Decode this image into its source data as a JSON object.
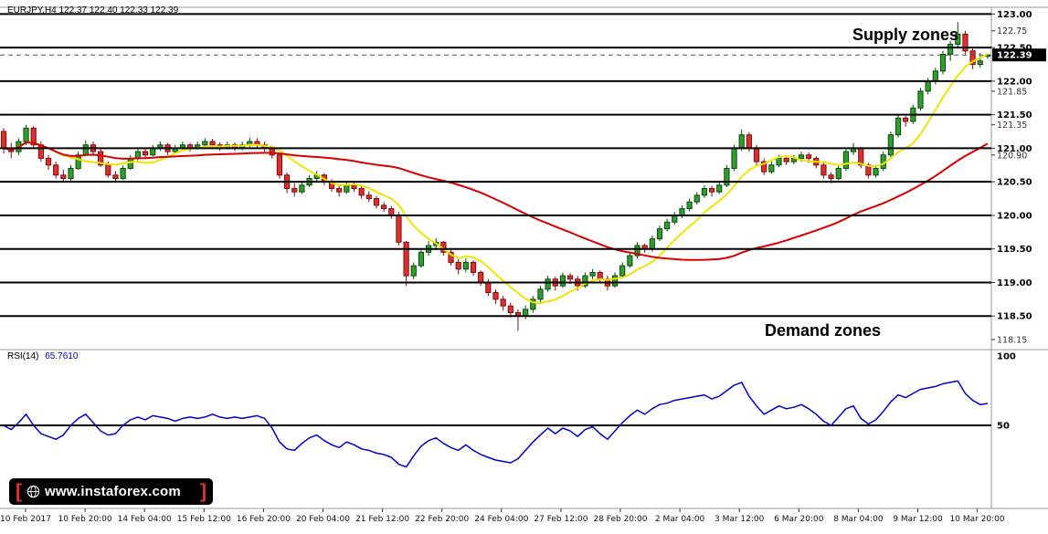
{
  "header": {
    "title": "EURJPY,H4 122.37 122.40 122.33 122.39"
  },
  "annotations": {
    "supply_zones": "Supply zones",
    "demand_zones": "Demand zones"
  },
  "rsi_label": {
    "name": "RSI(14)",
    "value": "65.7610"
  },
  "logo": {
    "bracket_left": "[",
    "text": "www.instaforex.com",
    "bracket_right": "]"
  },
  "time_axis": {
    "labels": [
      "10 Feb 2017",
      "10 Feb 20:00",
      "14 Feb 04:00",
      "15 Feb 12:00",
      "16 Feb 20:00",
      "20 Feb 04:00",
      "21 Feb 12:00",
      "22 Feb 20:00",
      "24 Feb 04:00",
      "27 Feb 12:00",
      "28 Feb 20:00",
      "2 Mar 04:00",
      "3 Mar 12:00",
      "6 Mar 20:00",
      "8 Mar 04:00",
      "9 Mar 12:00",
      "10 Mar 20:00"
    ]
  },
  "chart_data": {
    "type": "candlestick",
    "title": "EURJPY,H4",
    "symbol": "EURJPY",
    "timeframe": "H4",
    "ohlc_display": {
      "open": "122.37",
      "high": "122.40",
      "low": "122.33",
      "close": "122.39"
    },
    "ylim": [
      118.0,
      123.1
    ],
    "grid": false,
    "colors": {
      "bull": "#2f9e2f",
      "bull_border": "#0c4a0c",
      "bear": "#de2f2f",
      "bear_border": "#7d0f0f",
      "level": "#000000"
    },
    "horizontal_levels": [
      123.0,
      122.5,
      122.0,
      121.5,
      121.0,
      120.5,
      120.0,
      119.5,
      119.0,
      118.5
    ],
    "axis_labels": [
      {
        "text": "123.00",
        "price": 123.0,
        "bold": true
      },
      {
        "text": "122.75",
        "price": 122.75,
        "bold": false
      },
      {
        "text": "122.50",
        "price": 122.5,
        "bold": true
      },
      {
        "text": "122.00",
        "price": 122.0,
        "bold": true
      },
      {
        "text": "121.85",
        "price": 121.85,
        "bold": false
      },
      {
        "text": "121.50",
        "price": 121.5,
        "bold": true
      },
      {
        "text": "121.35",
        "price": 121.35,
        "bold": false
      },
      {
        "text": "121.00",
        "price": 121.0,
        "bold": true
      },
      {
        "text": "120.90",
        "price": 120.9,
        "bold": false
      },
      {
        "text": "120.50",
        "price": 120.5,
        "bold": true
      },
      {
        "text": "120.00",
        "price": 120.0,
        "bold": true
      },
      {
        "text": "119.50",
        "price": 119.5,
        "bold": true
      },
      {
        "text": "119.00",
        "price": 119.0,
        "bold": true
      },
      {
        "text": "118.50",
        "price": 118.5,
        "bold": true
      },
      {
        "text": "118.15",
        "price": 118.15,
        "bold": false
      }
    ],
    "current_price": 122.39,
    "ma_fast": {
      "period": 8,
      "color": "#f2e400"
    },
    "ma_slow": {
      "period": 45,
      "color": "#d90000"
    },
    "candles": [
      [
        121.25,
        121.3,
        120.92,
        121.0
      ],
      [
        121.0,
        121.08,
        120.85,
        120.95
      ],
      [
        120.95,
        121.15,
        120.9,
        121.1
      ],
      [
        121.1,
        121.35,
        121.05,
        121.3
      ],
      [
        121.3,
        121.33,
        121.0,
        121.05
      ],
      [
        121.05,
        121.1,
        120.8,
        120.85
      ],
      [
        120.85,
        120.9,
        120.68,
        120.75
      ],
      [
        120.75,
        120.8,
        120.55,
        120.6
      ],
      [
        120.6,
        120.68,
        120.5,
        120.55
      ],
      [
        120.55,
        120.75,
        120.52,
        120.7
      ],
      [
        120.7,
        120.95,
        120.68,
        120.9
      ],
      [
        120.9,
        121.12,
        120.88,
        121.05
      ],
      [
        121.05,
        121.1,
        120.9,
        120.95
      ],
      [
        120.95,
        121.0,
        120.72,
        120.75
      ],
      [
        120.75,
        120.8,
        120.56,
        120.6
      ],
      [
        120.6,
        120.66,
        120.5,
        120.55
      ],
      [
        120.55,
        120.75,
        120.53,
        120.7
      ],
      [
        120.7,
        120.9,
        120.68,
        120.85
      ],
      [
        120.85,
        121.0,
        120.82,
        120.95
      ],
      [
        120.95,
        121.0,
        120.84,
        120.9
      ],
      [
        120.9,
        121.05,
        120.88,
        121.0
      ],
      [
        121.0,
        121.1,
        120.96,
        121.05
      ],
      [
        121.05,
        121.08,
        120.9,
        120.95
      ],
      [
        120.95,
        121.05,
        120.92,
        121.0
      ],
      [
        121.0,
        121.1,
        120.97,
        121.05
      ],
      [
        121.05,
        121.08,
        120.95,
        121.0
      ],
      [
        121.0,
        121.1,
        120.98,
        121.05
      ],
      [
        121.05,
        121.15,
        121.02,
        121.1
      ],
      [
        121.1,
        121.14,
        121.0,
        121.05
      ],
      [
        121.05,
        121.09,
        120.96,
        121.0
      ],
      [
        121.0,
        121.1,
        120.98,
        121.05
      ],
      [
        121.05,
        121.09,
        120.96,
        121.0
      ],
      [
        121.0,
        121.1,
        120.97,
        121.05
      ],
      [
        121.05,
        121.16,
        121.02,
        121.1
      ],
      [
        121.1,
        121.15,
        121.0,
        121.05
      ],
      [
        121.05,
        121.1,
        120.95,
        121.0
      ],
      [
        121.0,
        121.04,
        120.85,
        120.9
      ],
      [
        120.9,
        120.93,
        120.55,
        120.6
      ],
      [
        120.6,
        120.64,
        120.33,
        120.4
      ],
      [
        120.4,
        120.48,
        120.28,
        120.35
      ],
      [
        120.35,
        120.5,
        120.32,
        120.45
      ],
      [
        120.45,
        120.6,
        120.42,
        120.55
      ],
      [
        120.55,
        120.66,
        120.5,
        120.6
      ],
      [
        120.6,
        120.63,
        120.45,
        120.5
      ],
      [
        120.5,
        120.54,
        120.35,
        120.4
      ],
      [
        120.4,
        120.45,
        120.28,
        120.35
      ],
      [
        120.35,
        120.5,
        120.32,
        120.45
      ],
      [
        120.45,
        120.49,
        120.35,
        120.4
      ],
      [
        120.4,
        120.44,
        120.25,
        120.3
      ],
      [
        120.3,
        120.36,
        120.2,
        120.25
      ],
      [
        120.25,
        120.29,
        120.1,
        120.15
      ],
      [
        120.15,
        120.2,
        120.05,
        120.1
      ],
      [
        120.1,
        120.14,
        119.95,
        120.0
      ],
      [
        120.0,
        120.05,
        119.55,
        119.6
      ],
      [
        119.6,
        119.62,
        118.95,
        119.1
      ],
      [
        119.1,
        119.3,
        119.05,
        119.25
      ],
      [
        119.25,
        119.5,
        119.22,
        119.45
      ],
      [
        119.45,
        119.62,
        119.4,
        119.55
      ],
      [
        119.55,
        119.66,
        119.48,
        119.6
      ],
      [
        119.6,
        119.62,
        119.4,
        119.45
      ],
      [
        119.45,
        119.5,
        119.25,
        119.3
      ],
      [
        119.3,
        119.35,
        119.12,
        119.2
      ],
      [
        119.2,
        119.36,
        119.15,
        119.3
      ],
      [
        119.3,
        119.33,
        119.1,
        119.15
      ],
      [
        119.15,
        119.18,
        118.95,
        119.0
      ],
      [
        119.0,
        119.05,
        118.8,
        118.85
      ],
      [
        118.85,
        118.9,
        118.68,
        118.75
      ],
      [
        118.75,
        118.8,
        118.58,
        118.65
      ],
      [
        118.65,
        118.7,
        118.48,
        118.55
      ],
      [
        118.55,
        118.6,
        118.28,
        118.5
      ],
      [
        118.5,
        118.66,
        118.45,
        118.6
      ],
      [
        118.6,
        118.8,
        118.55,
        118.75
      ],
      [
        118.75,
        118.95,
        118.7,
        118.9
      ],
      [
        118.9,
        119.1,
        118.86,
        119.05
      ],
      [
        119.05,
        119.09,
        118.88,
        118.95
      ],
      [
        118.95,
        119.15,
        118.92,
        119.1
      ],
      [
        119.1,
        119.14,
        118.98,
        119.05
      ],
      [
        119.05,
        119.1,
        118.88,
        118.95
      ],
      [
        118.95,
        119.15,
        118.92,
        119.1
      ],
      [
        119.1,
        119.2,
        119.05,
        119.15
      ],
      [
        119.15,
        119.18,
        119.0,
        119.05
      ],
      [
        119.05,
        119.1,
        118.88,
        118.95
      ],
      [
        118.95,
        119.15,
        118.92,
        119.1
      ],
      [
        119.1,
        119.3,
        119.06,
        119.25
      ],
      [
        119.25,
        119.45,
        119.22,
        119.4
      ],
      [
        119.4,
        119.6,
        119.36,
        119.55
      ],
      [
        119.55,
        119.58,
        119.44,
        119.5
      ],
      [
        119.5,
        119.7,
        119.46,
        119.65
      ],
      [
        119.65,
        119.85,
        119.62,
        119.8
      ],
      [
        119.8,
        119.95,
        119.76,
        119.9
      ],
      [
        119.9,
        120.05,
        119.86,
        120.0
      ],
      [
        120.0,
        120.15,
        119.96,
        120.1
      ],
      [
        120.1,
        120.25,
        120.06,
        120.2
      ],
      [
        120.2,
        120.35,
        120.16,
        120.3
      ],
      [
        120.3,
        120.45,
        120.26,
        120.4
      ],
      [
        120.4,
        120.44,
        120.28,
        120.35
      ],
      [
        120.35,
        120.5,
        120.32,
        120.45
      ],
      [
        120.45,
        120.75,
        120.42,
        120.7
      ],
      [
        120.7,
        121.05,
        120.66,
        121.0
      ],
      [
        121.0,
        121.28,
        120.96,
        121.2
      ],
      [
        121.2,
        121.24,
        120.95,
        121.0
      ],
      [
        121.0,
        121.05,
        120.75,
        120.8
      ],
      [
        120.8,
        120.85,
        120.6,
        120.65
      ],
      [
        120.65,
        120.8,
        120.62,
        120.75
      ],
      [
        120.75,
        120.9,
        120.72,
        120.85
      ],
      [
        120.85,
        120.89,
        120.75,
        120.8
      ],
      [
        120.8,
        120.9,
        120.76,
        120.85
      ],
      [
        120.85,
        120.95,
        120.8,
        120.9
      ],
      [
        120.9,
        120.94,
        120.78,
        120.85
      ],
      [
        120.85,
        120.88,
        120.7,
        120.75
      ],
      [
        120.75,
        120.79,
        120.55,
        120.6
      ],
      [
        120.6,
        120.64,
        120.48,
        120.55
      ],
      [
        120.55,
        120.75,
        120.52,
        120.7
      ],
      [
        120.7,
        121.0,
        120.66,
        120.95
      ],
      [
        120.95,
        121.08,
        120.9,
        121.0
      ],
      [
        121.0,
        121.02,
        120.7,
        120.75
      ],
      [
        120.75,
        120.78,
        120.55,
        120.6
      ],
      [
        120.6,
        120.75,
        120.56,
        120.7
      ],
      [
        120.7,
        120.95,
        120.66,
        120.9
      ],
      [
        120.9,
        121.25,
        120.86,
        121.2
      ],
      [
        121.2,
        121.5,
        121.16,
        121.45
      ],
      [
        121.45,
        121.48,
        121.32,
        121.4
      ],
      [
        121.4,
        121.65,
        121.36,
        121.6
      ],
      [
        121.6,
        121.9,
        121.56,
        121.85
      ],
      [
        121.85,
        122.05,
        121.8,
        122.0
      ],
      [
        122.0,
        122.2,
        121.95,
        122.15
      ],
      [
        122.15,
        122.45,
        122.1,
        122.4
      ],
      [
        122.4,
        122.6,
        122.3,
        122.55
      ],
      [
        122.55,
        122.88,
        122.5,
        122.7
      ],
      [
        122.7,
        122.75,
        122.4,
        122.45
      ],
      [
        122.45,
        122.5,
        122.18,
        122.25
      ],
      [
        122.25,
        122.42,
        122.2,
        122.3
      ],
      [
        122.37,
        122.4,
        122.33,
        122.39
      ]
    ],
    "rsi": {
      "period": 14,
      "color": "#0000c8",
      "last": 65.761,
      "levels": [
        100,
        50
      ],
      "axis_labels": [
        {
          "text": "100",
          "value": 100
        },
        {
          "text": "50",
          "value": 50
        }
      ],
      "values": [
        50,
        47,
        52,
        58,
        50,
        44,
        42,
        40,
        43,
        50,
        55,
        58,
        52,
        46,
        43,
        44,
        50,
        54,
        56,
        54,
        57,
        56,
        55,
        53,
        55,
        56,
        55,
        56,
        58,
        56,
        55,
        56,
        55,
        56,
        57,
        55,
        48,
        38,
        33,
        32,
        37,
        41,
        43,
        39,
        36,
        34,
        38,
        36,
        33,
        32,
        30,
        29,
        27,
        22,
        20,
        28,
        35,
        39,
        41,
        37,
        34,
        32,
        36,
        32,
        29,
        27,
        25,
        24,
        23,
        26,
        32,
        38,
        43,
        48,
        44,
        48,
        46,
        42,
        47,
        49,
        44,
        40,
        46,
        52,
        57,
        61,
        58,
        62,
        65,
        66,
        68,
        69,
        70,
        71,
        72,
        69,
        71,
        75,
        79,
        81,
        71,
        64,
        58,
        61,
        64,
        62,
        63,
        65,
        62,
        58,
        53,
        50,
        56,
        62,
        64,
        55,
        51,
        54,
        60,
        67,
        72,
        70,
        73,
        76,
        77,
        78,
        80,
        81,
        82,
        73,
        68,
        65,
        65.76
      ]
    }
  }
}
